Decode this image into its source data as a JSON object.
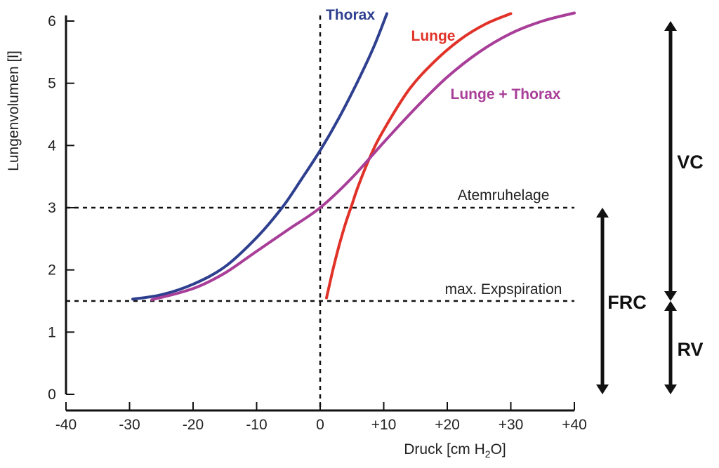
{
  "chart_data": {
    "type": "line",
    "xlabel": "Druck [cm H2O]",
    "xlabel_parts": {
      "main": "Druck [cm H",
      "sub": "2",
      "tail": "O]"
    },
    "ylabel": "Lungenvolumen [l]",
    "xlim": [
      -40,
      40
    ],
    "ylim": [
      0,
      6
    ],
    "x_ticks": [
      -40,
      -30,
      -20,
      -10,
      0,
      10,
      20,
      30,
      40
    ],
    "x_tick_labels": [
      "-40",
      "-30",
      "-20",
      "-10",
      "0",
      "+10",
      "+20",
      "+30",
      "+40"
    ],
    "y_ticks": [
      0,
      1,
      2,
      3,
      4,
      5,
      6
    ],
    "y_tick_labels": [
      "0",
      "1",
      "2",
      "3",
      "4",
      "5",
      "6"
    ],
    "grid": false,
    "series": [
      {
        "name": "Thorax",
        "color": "#2e3f8f",
        "points": [
          [
            -29.5,
            1.53
          ],
          [
            -25,
            1.6
          ],
          [
            -20,
            1.77
          ],
          [
            -15,
            2.05
          ],
          [
            -10,
            2.52
          ],
          [
            -6,
            3.0
          ],
          [
            -3,
            3.45
          ],
          [
            0,
            3.92
          ],
          [
            3,
            4.45
          ],
          [
            6,
            5.05
          ],
          [
            8.5,
            5.6
          ],
          [
            10.5,
            6.12
          ]
        ]
      },
      {
        "name": "Lunge",
        "color": "#e03228",
        "points": [
          [
            1,
            1.55
          ],
          [
            2,
            2.0
          ],
          [
            3,
            2.4
          ],
          [
            4,
            2.75
          ],
          [
            5,
            3.05
          ],
          [
            6,
            3.35
          ],
          [
            8,
            3.85
          ],
          [
            10,
            4.25
          ],
          [
            14,
            4.9
          ],
          [
            18,
            5.35
          ],
          [
            22,
            5.7
          ],
          [
            26,
            5.95
          ],
          [
            30,
            6.12
          ]
        ]
      },
      {
        "name": "Lunge + Thorax",
        "color": "#a83e98",
        "points": [
          [
            -26.5,
            1.52
          ],
          [
            -20,
            1.7
          ],
          [
            -15,
            1.95
          ],
          [
            -10,
            2.3
          ],
          [
            -5,
            2.65
          ],
          [
            0,
            3.0
          ],
          [
            5,
            3.48
          ],
          [
            10,
            4.05
          ],
          [
            15,
            4.6
          ],
          [
            20,
            5.1
          ],
          [
            25,
            5.5
          ],
          [
            30,
            5.8
          ],
          [
            35,
            6.0
          ],
          [
            40,
            6.13
          ]
        ]
      }
    ],
    "reference_lines": [
      {
        "label": "Atemruhelage",
        "y": 3
      },
      {
        "label": "max. Expspiration",
        "y": 1.5
      }
    ],
    "vertical_reference": {
      "x": 0
    },
    "brackets": [
      {
        "label": "VC",
        "from": 1.5,
        "to": 6
      },
      {
        "label": "RV",
        "from": 0,
        "to": 1.5
      },
      {
        "label": "FRC",
        "from": 0,
        "to": 3
      }
    ]
  }
}
